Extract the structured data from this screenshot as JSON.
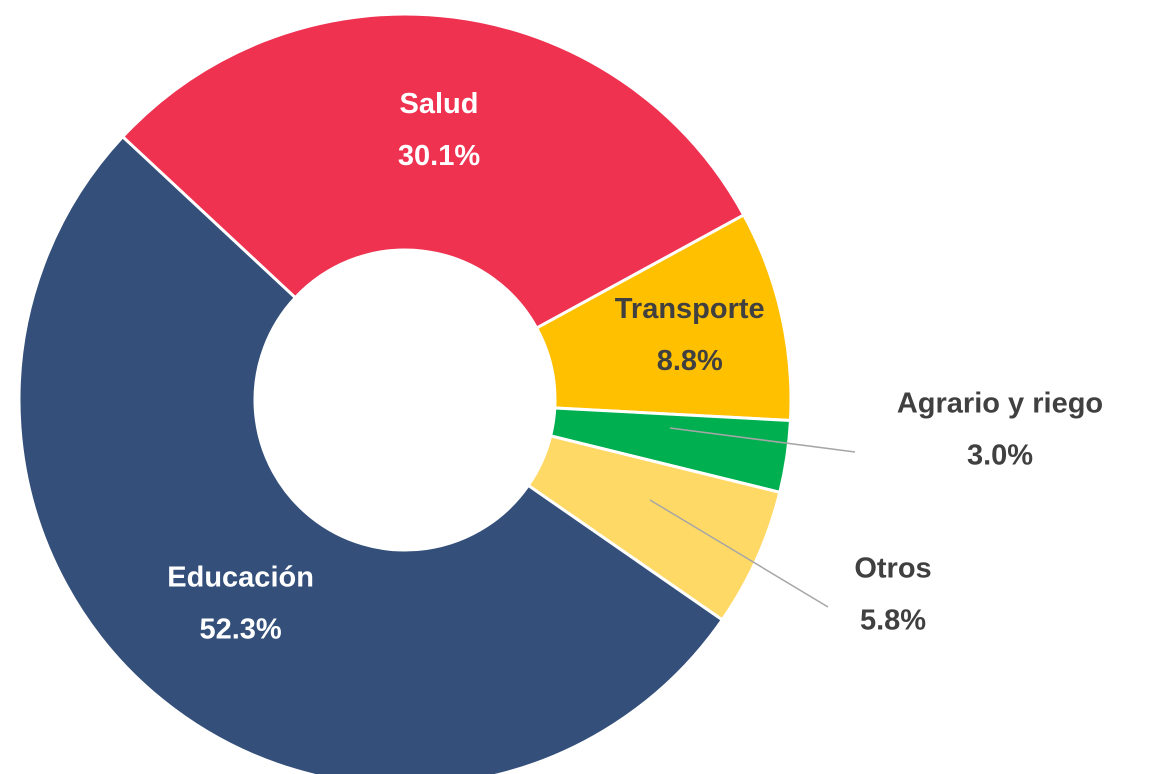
{
  "chart_data": {
    "type": "donut",
    "categories": [
      "Salud",
      "Transporte",
      "Agrario y riego",
      "Otros",
      "Educación"
    ],
    "values": [
      30.1,
      8.8,
      3.0,
      5.8,
      52.3
    ],
    "value_labels": [
      "30.1%",
      "8.8%",
      "3.0%",
      "5.8%",
      "52.3%"
    ],
    "colors": [
      "#ee3250",
      "#ffc000",
      "#00b050",
      "#ffd966",
      "#334f7a"
    ]
  }
}
